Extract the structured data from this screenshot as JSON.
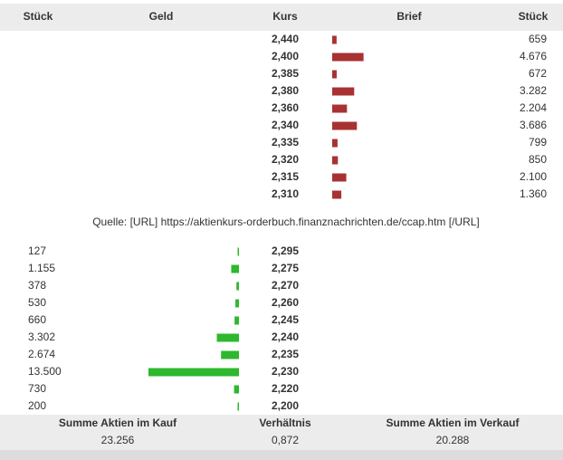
{
  "header": [
    "Stück",
    "Geld",
    "Kurs",
    "Brief",
    "Stück"
  ],
  "asks": {
    "kurs": [
      "2,440",
      "2,400",
      "2,385",
      "2,380",
      "2,360",
      "2,340",
      "2,335",
      "2,320",
      "2,315",
      "2,310"
    ],
    "stueck": [
      659,
      4676,
      672,
      3282,
      2204,
      3686,
      799,
      850,
      2100,
      1360
    ],
    "value_labels": [
      "659",
      "4.676",
      "672",
      "3.282",
      "2.204",
      "3.686",
      "799",
      "850",
      "2.100",
      "1.360"
    ]
  },
  "source": "Quelle: [URL] https://aktienkurs-orderbuch.finanznachrichten.de/ccap.htm [/URL]",
  "bids": {
    "kurs": [
      "2,295",
      "2,275",
      "2,270",
      "2,260",
      "2,245",
      "2,240",
      "2,235",
      "2,230",
      "2,220",
      "2,200"
    ],
    "stueck": [
      127,
      1155,
      378,
      530,
      660,
      3302,
      2674,
      13500,
      730,
      200
    ],
    "value_labels": [
      "127",
      "1.155",
      "378",
      "530",
      "660",
      "3.302",
      "2.674",
      "13.500",
      "730",
      "200"
    ]
  },
  "footer": {
    "labels": [
      "Summe Aktien im Kauf",
      "Verhältnis",
      "Summe Aktien im Verkauf"
    ],
    "values": [
      "23.256",
      "0,872",
      "20.288"
    ]
  }
}
